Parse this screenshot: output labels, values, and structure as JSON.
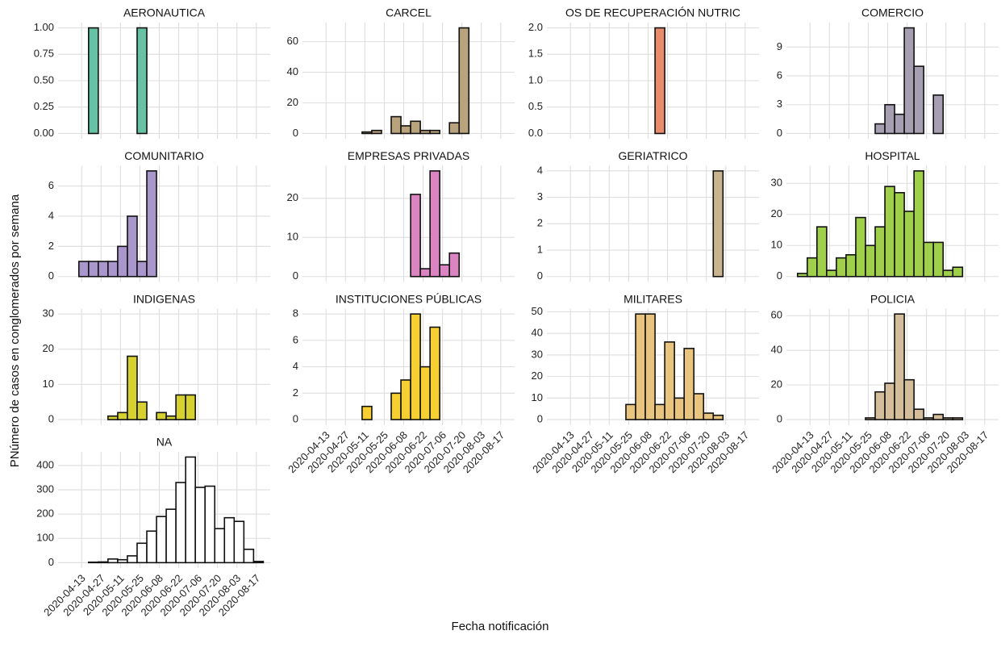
{
  "axis_titles": {
    "x": "Fecha notificación",
    "y": "PNúmero de casos en conglomerados por semana"
  },
  "chart_data": [
    {
      "type": "histogram",
      "title": "AERONAUTICA",
      "color": "#66c2a5",
      "grid": true,
      "bins": [
        "2020-04-18",
        "2020-04-25",
        "2020-05-02",
        "2020-05-09",
        "2020-05-16",
        "2020-05-23",
        "2020-05-30"
      ],
      "values": [
        1,
        null,
        null,
        null,
        null,
        1
      ],
      "xlim": [
        "2020-03-27",
        "2020-08-27"
      ],
      "xticks": [
        "2020-04-13",
        "2020-04-27",
        "2020-05-11",
        "2020-05-25",
        "2020-06-08",
        "2020-06-22",
        "2020-07-06",
        "2020-07-20",
        "2020-08-03",
        "2020-08-17"
      ],
      "ylim": [
        -0.05,
        1.05
      ],
      "yticks": [
        {
          "value": 0,
          "label": "0.00"
        },
        {
          "value": 0.25,
          "label": "0.25"
        },
        {
          "value": 0.5,
          "label": "0.50"
        },
        {
          "value": 0.75,
          "label": "0.75"
        },
        {
          "value": 1,
          "label": "1.00"
        }
      ]
    },
    {
      "type": "histogram",
      "title": "CARCEL",
      "color": "#b9a37d",
      "grid": true,
      "bins": [
        "2020-05-09",
        "2020-05-16",
        "2020-05-23",
        "2020-05-30",
        "2020-06-06",
        "2020-06-13",
        "2020-06-20",
        "2020-06-27",
        "2020-07-04",
        "2020-07-11",
        "2020-07-18",
        "2020-07-25"
      ],
      "values": [
        1,
        2,
        null,
        11,
        5,
        8,
        2,
        2,
        null,
        7,
        69
      ],
      "xlim": [
        "2020-03-27",
        "2020-08-27"
      ],
      "xticks": [
        "2020-04-13",
        "2020-04-27",
        "2020-05-11",
        "2020-05-25",
        "2020-06-08",
        "2020-06-22",
        "2020-07-06",
        "2020-07-20",
        "2020-08-03",
        "2020-08-17"
      ],
      "ylim": [
        -3.45,
        72.45
      ],
      "yticks": [
        0,
        20,
        40,
        60
      ]
    },
    {
      "type": "histogram",
      "title": "OS DE RECUPERACIÓN NUTRIC",
      "color": "#e98c6c",
      "grid": true,
      "bins": [
        "2020-06-13",
        "2020-06-20"
      ],
      "values": [
        2
      ],
      "xlim": [
        "2020-03-27",
        "2020-08-27"
      ],
      "xticks": [
        "2020-04-13",
        "2020-04-27",
        "2020-05-11",
        "2020-05-25",
        "2020-06-08",
        "2020-06-22",
        "2020-07-06",
        "2020-07-20",
        "2020-08-03",
        "2020-08-17"
      ],
      "ylim": [
        -0.1,
        2.1
      ],
      "yticks": [
        {
          "value": 0,
          "label": "0.0"
        },
        {
          "value": 0.5,
          "label": "0.5"
        },
        {
          "value": 1,
          "label": "1.0"
        },
        {
          "value": 1.5,
          "label": "1.5"
        },
        {
          "value": 2,
          "label": "2.0"
        }
      ]
    },
    {
      "type": "histogram",
      "title": "COMERCIO",
      "color": "#a69fb1",
      "grid": true,
      "bins": [
        "2020-05-30",
        "2020-06-06",
        "2020-06-13",
        "2020-06-20",
        "2020-06-27",
        "2020-07-04",
        "2020-07-11",
        "2020-07-18"
      ],
      "values": [
        1,
        3,
        2,
        11,
        7,
        null,
        4
      ],
      "xlim": [
        "2020-03-27",
        "2020-08-27"
      ],
      "xticks": [
        "2020-04-13",
        "2020-04-27",
        "2020-05-11",
        "2020-05-25",
        "2020-06-08",
        "2020-06-22",
        "2020-07-06",
        "2020-07-20",
        "2020-08-03",
        "2020-08-17"
      ],
      "ylim": [
        -0.55,
        11.55
      ],
      "yticks": [
        0,
        3,
        6,
        9
      ]
    },
    {
      "type": "histogram",
      "title": "COMUNITARIO",
      "color": "#a996cc",
      "grid": true,
      "bins": [
        "2020-04-11",
        "2020-04-18",
        "2020-04-25",
        "2020-05-02",
        "2020-05-09",
        "2020-05-16",
        "2020-05-23",
        "2020-05-30",
        "2020-06-06"
      ],
      "values": [
        1,
        1,
        1,
        1,
        2,
        4,
        1,
        7
      ],
      "xlim": [
        "2020-03-27",
        "2020-08-27"
      ],
      "xticks": [
        "2020-04-13",
        "2020-04-27",
        "2020-05-11",
        "2020-05-25",
        "2020-06-08",
        "2020-06-22",
        "2020-07-06",
        "2020-07-20",
        "2020-08-03",
        "2020-08-17"
      ],
      "ylim": [
        -0.35,
        7.35
      ],
      "yticks": [
        0,
        2,
        4,
        6
      ]
    },
    {
      "type": "histogram",
      "title": "EMPRESAS PRIVADAS",
      "color": "#da84c2",
      "grid": true,
      "bins": [
        "2020-06-13",
        "2020-06-20",
        "2020-06-27",
        "2020-07-04",
        "2020-07-11",
        "2020-07-18"
      ],
      "values": [
        21,
        2,
        27,
        3,
        6
      ],
      "xlim": [
        "2020-03-27",
        "2020-08-27"
      ],
      "xticks": [
        "2020-04-13",
        "2020-04-27",
        "2020-05-11",
        "2020-05-25",
        "2020-06-08",
        "2020-06-22",
        "2020-07-06",
        "2020-07-20",
        "2020-08-03",
        "2020-08-17"
      ],
      "ylim": [
        -1.35,
        28.35
      ],
      "yticks": [
        0,
        10,
        20
      ]
    },
    {
      "type": "histogram",
      "title": "GERIATRICO",
      "color": "#c8b48f",
      "grid": true,
      "bins": [
        "2020-07-25",
        "2020-08-01"
      ],
      "values": [
        4
      ],
      "xlim": [
        "2020-03-27",
        "2020-08-27"
      ],
      "xticks": [
        "2020-04-13",
        "2020-04-27",
        "2020-05-11",
        "2020-05-25",
        "2020-06-08",
        "2020-06-22",
        "2020-07-06",
        "2020-07-20",
        "2020-08-03",
        "2020-08-17"
      ],
      "ylim": [
        -0.2,
        4.2
      ],
      "yticks": [
        0,
        1,
        2,
        3,
        4
      ]
    },
    {
      "type": "histogram",
      "title": "HOSPITAL",
      "color": "#a0cf4b",
      "grid": true,
      "bins": [
        "2020-04-04",
        "2020-04-11",
        "2020-04-18",
        "2020-04-25",
        "2020-05-02",
        "2020-05-09",
        "2020-05-16",
        "2020-05-23",
        "2020-05-30",
        "2020-06-06",
        "2020-06-13",
        "2020-06-20",
        "2020-06-27",
        "2020-07-04",
        "2020-07-11",
        "2020-07-18",
        "2020-07-25",
        "2020-08-01"
      ],
      "values": [
        1,
        6,
        16,
        2,
        6,
        7,
        19,
        10,
        16,
        29,
        27,
        21,
        34,
        11,
        11,
        2,
        3
      ],
      "xlim": [
        "2020-03-27",
        "2020-08-27"
      ],
      "xticks": [
        "2020-04-13",
        "2020-04-27",
        "2020-05-11",
        "2020-05-25",
        "2020-06-08",
        "2020-06-22",
        "2020-07-06",
        "2020-07-20",
        "2020-08-03",
        "2020-08-17"
      ],
      "ylim": [
        -1.7,
        35.7
      ],
      "yticks": [
        0,
        10,
        20,
        30
      ]
    },
    {
      "type": "histogram",
      "title": "INDIGENAS",
      "color": "#d6d12e",
      "grid": true,
      "bins": [
        "2020-05-02",
        "2020-05-09",
        "2020-05-16",
        "2020-05-23",
        "2020-05-30",
        "2020-06-06",
        "2020-06-13",
        "2020-06-20",
        "2020-06-27",
        "2020-07-04"
      ],
      "values": [
        1,
        2,
        18,
        5,
        null,
        2,
        1,
        7,
        7
      ],
      "xlim": [
        "2020-03-27",
        "2020-08-27"
      ],
      "xticks": [
        "2020-04-13",
        "2020-04-27",
        "2020-05-11",
        "2020-05-25",
        "2020-06-08",
        "2020-06-22",
        "2020-07-06",
        "2020-07-20",
        "2020-08-03",
        "2020-08-17"
      ],
      "ylim": [
        -1.5,
        31.5
      ],
      "yticks": [
        0,
        10,
        20,
        30
      ]
    },
    {
      "type": "histogram",
      "title": "INSTITUCIONES PÚBLICAS",
      "color": "#f6d033",
      "grid": true,
      "bins": [
        "2020-05-09",
        "2020-05-16",
        "2020-05-23",
        "2020-05-30",
        "2020-06-06",
        "2020-06-13",
        "2020-06-20",
        "2020-06-27",
        "2020-07-04"
      ],
      "values": [
        1,
        null,
        null,
        2,
        3,
        8,
        4,
        7
      ],
      "xlim": [
        "2020-03-27",
        "2020-08-27"
      ],
      "xticks": [
        "2020-04-13",
        "2020-04-27",
        "2020-05-11",
        "2020-05-25",
        "2020-06-08",
        "2020-06-22",
        "2020-07-06",
        "2020-07-20",
        "2020-08-03",
        "2020-08-17"
      ],
      "ylim": [
        -0.4,
        8.4
      ],
      "yticks": [
        0,
        2,
        4,
        6,
        8
      ]
    },
    {
      "type": "histogram",
      "title": "MILITARES",
      "color": "#e8c47f",
      "grid": true,
      "bins": [
        "2020-05-23",
        "2020-05-30",
        "2020-06-06",
        "2020-06-13",
        "2020-06-20",
        "2020-06-27",
        "2020-07-04",
        "2020-07-11",
        "2020-07-18",
        "2020-07-25",
        "2020-08-01"
      ],
      "values": [
        7,
        49,
        49,
        7,
        36,
        10,
        33,
        12,
        3,
        2
      ],
      "xlim": [
        "2020-03-27",
        "2020-08-27"
      ],
      "xticks": [
        "2020-04-13",
        "2020-04-27",
        "2020-05-11",
        "2020-05-25",
        "2020-06-08",
        "2020-06-22",
        "2020-07-06",
        "2020-07-20",
        "2020-08-03",
        "2020-08-17"
      ],
      "ylim": [
        -2.45,
        51.45
      ],
      "yticks": [
        0,
        10,
        20,
        30,
        40,
        50
      ]
    },
    {
      "type": "histogram",
      "title": "POLICIA",
      "color": "#d3bd9b",
      "grid": true,
      "bins": [
        "2020-05-23",
        "2020-05-30",
        "2020-06-06",
        "2020-06-13",
        "2020-06-20",
        "2020-06-27",
        "2020-07-04",
        "2020-07-11",
        "2020-07-18",
        "2020-07-25",
        "2020-08-01"
      ],
      "values": [
        1,
        16,
        21,
        61,
        23,
        6,
        1,
        3,
        1,
        1
      ],
      "xlim": [
        "2020-03-27",
        "2020-08-27"
      ],
      "xticks": [
        "2020-04-13",
        "2020-04-27",
        "2020-05-11",
        "2020-05-25",
        "2020-06-08",
        "2020-06-22",
        "2020-07-06",
        "2020-07-20",
        "2020-08-03",
        "2020-08-17"
      ],
      "ylim": [
        -3.05,
        64.05
      ],
      "yticks": [
        0,
        20,
        40,
        60
      ]
    },
    {
      "type": "histogram",
      "title": "NA",
      "color": "#ffffff",
      "grid": true,
      "bins": [
        "2020-04-18",
        "2020-04-25",
        "2020-05-02",
        "2020-05-09",
        "2020-05-16",
        "2020-05-23",
        "2020-05-30",
        "2020-06-06",
        "2020-06-13",
        "2020-06-20",
        "2020-06-27",
        "2020-07-04",
        "2020-07-11",
        "2020-07-18",
        "2020-07-25",
        "2020-08-01",
        "2020-08-08",
        "2020-08-15",
        "2020-08-22"
      ],
      "values": [
        2,
        3,
        15,
        12,
        28,
        80,
        130,
        190,
        220,
        330,
        435,
        310,
        315,
        140,
        185,
        170,
        55,
        5
      ],
      "xlim": [
        "2020-03-27",
        "2020-08-27"
      ],
      "xticks": [
        "2020-04-13",
        "2020-04-27",
        "2020-05-11",
        "2020-05-25",
        "2020-06-08",
        "2020-06-22",
        "2020-07-06",
        "2020-07-20",
        "2020-08-03",
        "2020-08-17"
      ],
      "ylim": [
        -21.75,
        456.75
      ],
      "yticks": [
        0,
        100,
        200,
        300,
        400
      ]
    }
  ]
}
